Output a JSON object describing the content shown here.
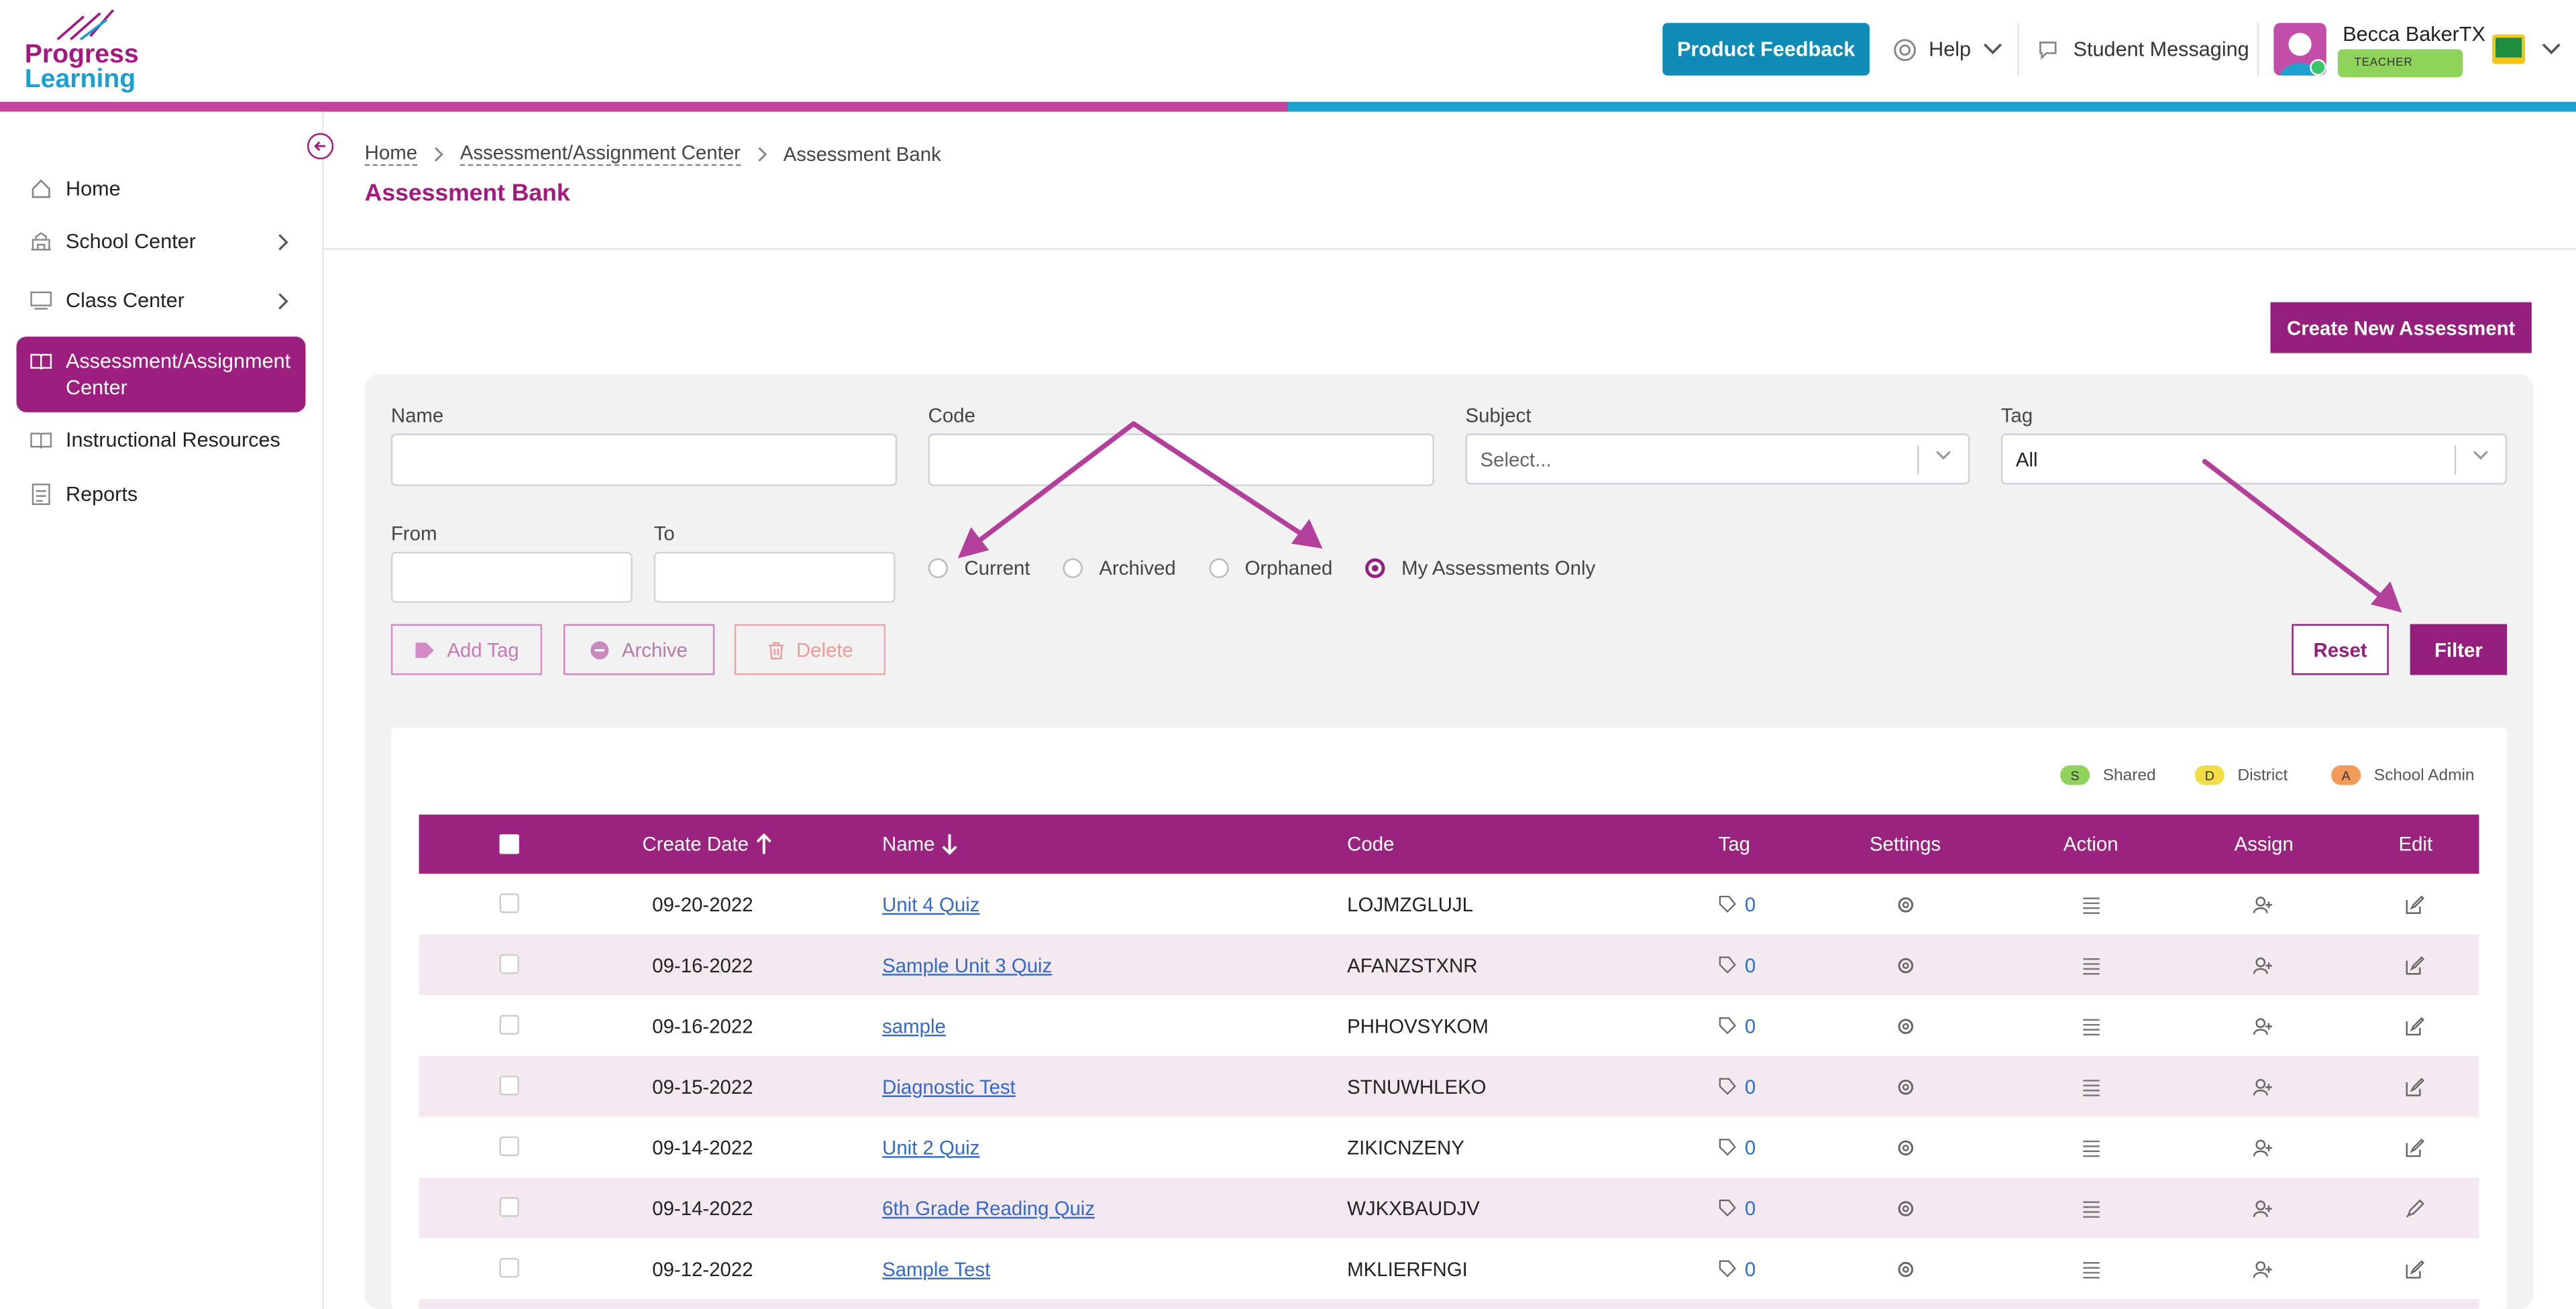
{
  "brand": {
    "logo_line1": "Progress",
    "logo_line2": "Learning",
    "accent": "#951f7d",
    "blue": "#1ea0d0"
  },
  "header": {
    "feedback_label": "Product Feedback",
    "help_label": "Help",
    "messaging_label": "Student Messaging",
    "user_name": "Becca BakerTX",
    "user_role": "TEACHER"
  },
  "sidebar": {
    "items": [
      {
        "label": "Home",
        "icon": "home-icon"
      },
      {
        "label": "School Center",
        "icon": "school-icon"
      },
      {
        "label": "Class Center",
        "icon": "classroom-icon"
      },
      {
        "label": "Assessment/Assignment Center",
        "icon": "book-icon"
      },
      {
        "label": "Instructional Resources",
        "icon": "book-open-icon"
      },
      {
        "label": "Reports",
        "icon": "report-icon"
      }
    ]
  },
  "breadcrumb": [
    "Home",
    "Assessment/Assignment Center",
    "Assessment Bank"
  ],
  "page_title": "Assessment Bank",
  "create_button": "Create New Assessment",
  "filters": {
    "name_label": "Name",
    "code_label": "Code",
    "subject_label": "Subject",
    "subject_placeholder": "Select...",
    "tag_label": "Tag",
    "tag_value": "All",
    "from_label": "From",
    "to_label": "To",
    "radios": [
      "Current",
      "Archived",
      "Orphaned",
      "My Assessments Only"
    ],
    "selected_radio": "My Assessments Only",
    "add_tag": "Add Tag",
    "archive": "Archive",
    "delete": "Delete",
    "reset": "Reset",
    "filter": "Filter"
  },
  "legend": [
    {
      "letter": "S",
      "label": "Shared",
      "color": "#8fd35a"
    },
    {
      "letter": "D",
      "label": "District",
      "color": "#f3dd45"
    },
    {
      "letter": "A",
      "label": "School Admin",
      "color": "#f49a58"
    }
  ],
  "table": {
    "columns": [
      "Create Date",
      "Name",
      "Code",
      "Tag",
      "Settings",
      "Action",
      "Assign",
      "Edit"
    ],
    "rows": [
      {
        "date": "09-20-2022",
        "name": "Unit 4 Quiz",
        "code": "LOJMZGLUJL",
        "tag": "0"
      },
      {
        "date": "09-16-2022",
        "name": "Sample Unit 3 Quiz",
        "code": "AFANZSTXNR",
        "tag": "0"
      },
      {
        "date": "09-16-2022",
        "name": "sample",
        "code": "PHHOVSYKOM",
        "tag": "0"
      },
      {
        "date": "09-15-2022",
        "name": "Diagnostic Test",
        "code": "STNUWHLEKO",
        "tag": "0"
      },
      {
        "date": "09-14-2022",
        "name": "Unit 2 Quiz",
        "code": "ZIKICNZENY",
        "tag": "0"
      },
      {
        "date": "09-14-2022",
        "name": "6th Grade Reading Quiz",
        "code": "WJKXBAUDJV",
        "tag": "0"
      },
      {
        "date": "09-12-2022",
        "name": "Sample Test",
        "code": "MKLIERFNGI",
        "tag": "0"
      }
    ]
  }
}
